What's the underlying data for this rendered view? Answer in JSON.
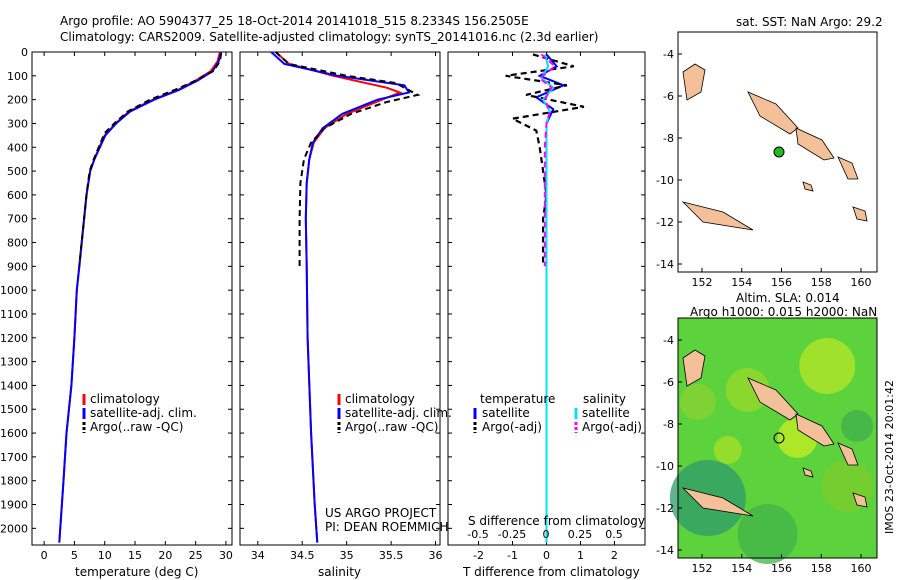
{
  "header": {
    "line1": "Argo profile: AO 5904377_25 18-Oct-2014 20141018_515 8.2334S 156.2505E",
    "line2": "Climatology: CARS2009. Satellite-adjusted climatology: synTS_20141016.nc (2.3d earlier)"
  },
  "colors": {
    "climatology": "#ff0000",
    "satellite": "#0000ff",
    "argo": "#000000",
    "sat_salinity": "#00e0ff",
    "argo_salinity": "#ff00ff",
    "land": "#f4c09a",
    "ocean_green": "#5cd23c"
  },
  "panels": {
    "temperature": {
      "xlabel": "temperature (deg C)",
      "xticks": [
        "0",
        "5",
        "10",
        "15",
        "20",
        "25",
        "30"
      ],
      "legend": [
        "climatology",
        "satellite-adj. clim.",
        "Argo(..raw -QC)"
      ]
    },
    "salinity": {
      "xlabel": "salinity",
      "xticks": [
        "34",
        "34.5",
        "35",
        "35.5",
        "36"
      ],
      "legend": [
        "climatology",
        "satellite-adj. clim.",
        "Argo(..raw -QC)"
      ],
      "project": "US ARGO PROJECT",
      "pi": "PI: DEAN ROEMMICH"
    },
    "difference": {
      "xlabel": "T difference from climatology",
      "s_label": "S difference from climatology",
      "xticks": [
        "-2",
        "-1",
        "0",
        "1",
        "2"
      ],
      "sticks": [
        "-0.5",
        "-0.25",
        "0",
        "0.25",
        "0.5"
      ],
      "legend_t_title": "temperature",
      "legend_s_title": "salinity",
      "legend_t": [
        "satellite",
        "Argo(-adj)"
      ],
      "legend_s": [
        "satellite",
        "Argo(-adj)"
      ]
    }
  },
  "depth_ticks": [
    "0",
    "100",
    "200",
    "300",
    "400",
    "500",
    "600",
    "700",
    "800",
    "900",
    "1000",
    "1100",
    "1200",
    "1300",
    "1400",
    "1500",
    "1600",
    "1700",
    "1800",
    "1900",
    "2000"
  ],
  "map_top": {
    "title": "sat. SST: NaN Argo: 29.2",
    "xticks": [
      "152",
      "154",
      "156",
      "158",
      "160"
    ],
    "yticks": [
      "-4",
      "-6",
      "-8",
      "-10",
      "-12",
      "-14"
    ]
  },
  "map_bottom": {
    "title1": "Altim. SLA: 0.014",
    "title2": "Argo h1000: 0.015 h2000: NaN",
    "xticks": [
      "152",
      "154",
      "156",
      "158",
      "160"
    ],
    "yticks": [
      "-4",
      "-6",
      "-8",
      "-10",
      "-12",
      "-14"
    ]
  },
  "footer": "IMOS 23-Oct-2014 20:01:42",
  "chart_data": [
    {
      "type": "line",
      "title": "",
      "xlabel": "temperature (deg C)",
      "ylabel": "",
      "xlim": [
        -2,
        31
      ],
      "ylim": [
        2070,
        0
      ],
      "series": [
        {
          "name": "climatology",
          "pairs": [
            [
              29.0,
              0
            ],
            [
              28.6,
              40
            ],
            [
              27.5,
              80
            ],
            [
              25.0,
              120
            ],
            [
              22.0,
              160
            ],
            [
              18.0,
              200
            ],
            [
              14.0,
              250
            ],
            [
              11.8,
              300
            ],
            [
              10.0,
              350
            ],
            [
              9.1,
              400
            ],
            [
              8.3,
              450
            ],
            [
              7.6,
              500
            ],
            [
              7.0,
              600
            ],
            [
              6.6,
              700
            ],
            [
              6.2,
              800
            ],
            [
              5.8,
              900
            ],
            [
              5.4,
              1000
            ],
            [
              5.0,
              1200
            ],
            [
              4.5,
              1400
            ],
            [
              3.7,
              1600
            ],
            [
              3.2,
              1800
            ],
            [
              2.5,
              2060
            ]
          ]
        },
        {
          "name": "satellite-adj. clim.",
          "pairs": [
            [
              29.2,
              0
            ],
            [
              28.8,
              40
            ],
            [
              27.8,
              80
            ],
            [
              25.3,
              120
            ],
            [
              22.2,
              160
            ],
            [
              18.2,
              200
            ],
            [
              14.2,
              250
            ],
            [
              11.9,
              300
            ],
            [
              10.1,
              350
            ],
            [
              9.2,
              400
            ],
            [
              8.3,
              450
            ],
            [
              7.6,
              500
            ],
            [
              7.0,
              600
            ],
            [
              6.6,
              700
            ],
            [
              6.2,
              800
            ],
            [
              5.8,
              900
            ],
            [
              5.4,
              1000
            ],
            [
              5.0,
              1200
            ],
            [
              4.5,
              1400
            ],
            [
              3.7,
              1600
            ],
            [
              3.2,
              1800
            ],
            [
              2.5,
              2060
            ]
          ]
        },
        {
          "name": "Argo(..raw -QC)",
          "pairs": [
            [
              29.2,
              5
            ],
            [
              29.0,
              40
            ],
            [
              27.9,
              80
            ],
            [
              25.0,
              120
            ],
            [
              21.5,
              160
            ],
            [
              17.5,
              200
            ],
            [
              13.8,
              250
            ],
            [
              11.6,
              300
            ],
            [
              10.0,
              340
            ],
            [
              9.0,
              400
            ],
            [
              8.2,
              450
            ],
            [
              7.5,
              500
            ],
            [
              7.0,
              600
            ],
            [
              6.6,
              700
            ],
            [
              6.2,
              800
            ],
            [
              5.8,
              900
            ]
          ]
        }
      ]
    },
    {
      "type": "line",
      "title": "",
      "xlabel": "salinity",
      "ylabel": "",
      "xlim": [
        33.8,
        36.05
      ],
      "ylim": [
        2070,
        0
      ],
      "series": [
        {
          "name": "climatology",
          "pairs": [
            [
              34.2,
              0
            ],
            [
              34.35,
              50
            ],
            [
              34.85,
              100
            ],
            [
              35.45,
              150
            ],
            [
              35.6,
              170
            ],
            [
              35.4,
              200
            ],
            [
              35.0,
              260
            ],
            [
              34.75,
              320
            ],
            [
              34.63,
              380
            ],
            [
              34.58,
              450
            ],
            [
              34.55,
              550
            ],
            [
              34.54,
              700
            ],
            [
              34.55,
              900
            ],
            [
              34.56,
              1200
            ],
            [
              34.6,
              1600
            ],
            [
              34.64,
              1900
            ],
            [
              34.67,
              2060
            ]
          ]
        },
        {
          "name": "satellite-adj. clim.",
          "pairs": [
            [
              34.15,
              0
            ],
            [
              34.3,
              50
            ],
            [
              34.9,
              100
            ],
            [
              35.65,
              140
            ],
            [
              35.7,
              170
            ],
            [
              35.35,
              200
            ],
            [
              34.95,
              260
            ],
            [
              34.73,
              320
            ],
            [
              34.62,
              380
            ],
            [
              34.58,
              450
            ],
            [
              34.55,
              550
            ],
            [
              34.54,
              700
            ],
            [
              34.55,
              900
            ],
            [
              34.56,
              1200
            ],
            [
              34.6,
              1600
            ],
            [
              34.64,
              1900
            ],
            [
              34.67,
              2060
            ]
          ]
        },
        {
          "name": "Argo(..raw -QC)",
          "pairs": [
            [
              34.2,
              0
            ],
            [
              34.35,
              50
            ],
            [
              35.0,
              100
            ],
            [
              35.55,
              130
            ],
            [
              35.8,
              180
            ],
            [
              35.45,
              210
            ],
            [
              35.05,
              260
            ],
            [
              34.75,
              320
            ],
            [
              34.6,
              380
            ],
            [
              34.52,
              450
            ],
            [
              34.48,
              550
            ],
            [
              34.47,
              700
            ],
            [
              34.47,
              900
            ]
          ]
        }
      ]
    },
    {
      "type": "line",
      "title": "",
      "xlabel": "T difference from climatology",
      "ylabel": "",
      "xlim": [
        -2.9,
        2.9
      ],
      "ylim": [
        2070,
        0
      ],
      "series": [
        {
          "name": "temperature satellite",
          "pairs": [
            [
              0,
              10
            ],
            [
              0.3,
              60
            ],
            [
              -0.2,
              100
            ],
            [
              0.5,
              140
            ],
            [
              -0.3,
              190
            ],
            [
              0.2,
              240
            ],
            [
              0,
              300
            ],
            [
              0,
              400
            ],
            [
              0,
              600
            ],
            [
              0,
              900
            ],
            [
              0,
              1200
            ],
            [
              0,
              1500
            ],
            [
              0,
              2060
            ]
          ]
        },
        {
          "name": "temperature Argo(-adj)",
          "pairs": [
            [
              -0.4,
              10
            ],
            [
              0.8,
              60
            ],
            [
              -1.2,
              100
            ],
            [
              0.6,
              140
            ],
            [
              -0.6,
              180
            ],
            [
              1.1,
              230
            ],
            [
              -1.0,
              280
            ],
            [
              -0.3,
              330
            ],
            [
              -0.2,
              400
            ],
            [
              -0.1,
              500
            ],
            [
              0,
              600
            ],
            [
              -0.1,
              700
            ],
            [
              -0.1,
              800
            ],
            [
              -0.1,
              900
            ]
          ]
        },
        {
          "name": "salinity satellite",
          "pairs": [
            [
              -0.05,
              10
            ],
            [
              0.05,
              60
            ],
            [
              -0.15,
              110
            ],
            [
              0.2,
              150
            ],
            [
              -0.1,
              200
            ],
            [
              0.1,
              250
            ],
            [
              0,
              300
            ],
            [
              0,
              400
            ],
            [
              0,
              600
            ],
            [
              0,
              900
            ],
            [
              0,
              1200
            ],
            [
              0,
              1500
            ],
            [
              0,
              2060
            ]
          ]
        },
        {
          "name": "salinity Argo(-adj)",
          "pairs": [
            [
              -0.15,
              10
            ],
            [
              0.25,
              60
            ],
            [
              -0.2,
              110
            ],
            [
              0.15,
              150
            ],
            [
              -0.05,
              200
            ],
            [
              0.1,
              250
            ],
            [
              0,
              300
            ],
            [
              -0.05,
              400
            ],
            [
              -0.05,
              600
            ],
            [
              -0.05,
              750
            ],
            [
              -0.05,
              900
            ]
          ]
        }
      ]
    }
  ]
}
